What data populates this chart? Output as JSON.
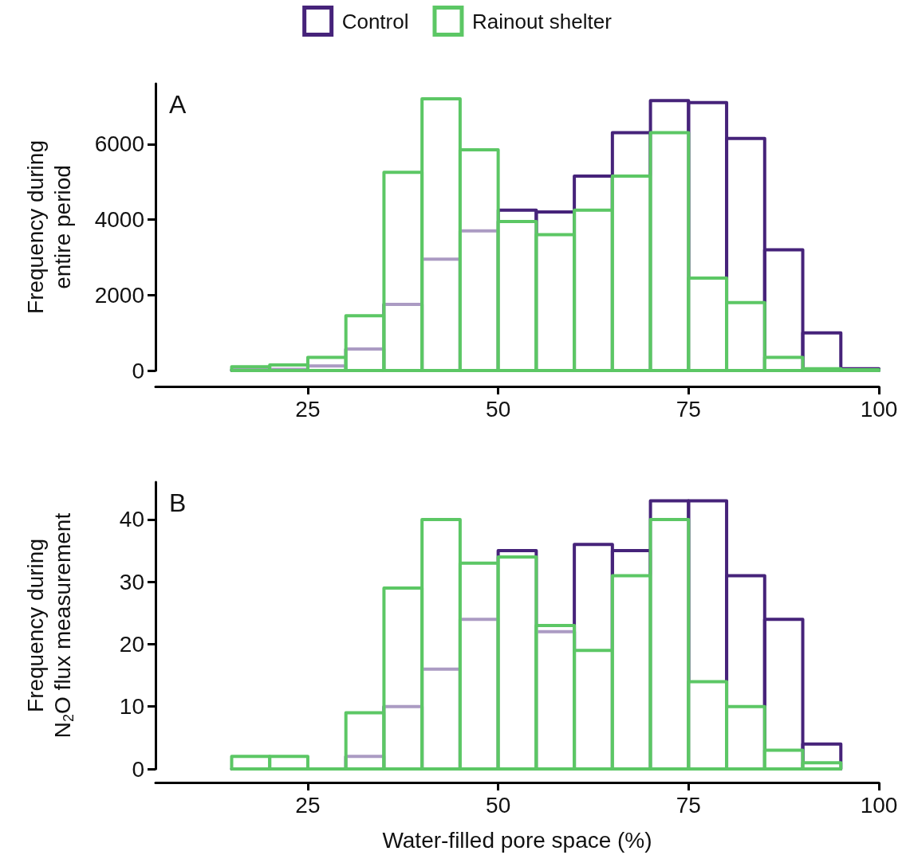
{
  "chart_data": [
    {
      "type": "histogram",
      "title": "A",
      "ylabel": "Frequency during\nentire period",
      "bins": [
        15,
        20,
        25,
        30,
        35,
        40,
        45,
        50,
        55,
        60,
        65,
        70,
        75,
        80,
        85,
        90,
        95,
        100
      ],
      "xlim": [
        5,
        100
      ],
      "xticks": [
        25,
        50,
        75,
        100
      ],
      "ylim": [
        0,
        7600
      ],
      "yticks": [
        0,
        2000,
        4000,
        6000
      ],
      "legend": "top",
      "grid": false,
      "series": [
        {
          "name": "Control",
          "color": "#46237a",
          "values": [
            20,
            30,
            120,
            570,
            1750,
            2950,
            3700,
            4250,
            4200,
            5150,
            6300,
            7150,
            7100,
            6150,
            3200,
            1000,
            50
          ]
        },
        {
          "name": "Rainout shelter",
          "color": "#5cc765",
          "values": [
            100,
            150,
            350,
            1450,
            5250,
            7200,
            5850,
            3950,
            3600,
            4250,
            5150,
            6300,
            2450,
            1800,
            350,
            50,
            20
          ]
        }
      ]
    },
    {
      "type": "histogram",
      "title": "B",
      "ylabel": "Frequency during\nN$_{2}$O flux measurement",
      "xlabel": "Water-filled pore space (%)",
      "bins": [
        15,
        20,
        25,
        30,
        35,
        40,
        45,
        50,
        55,
        60,
        65,
        70,
        75,
        80,
        85,
        90,
        95
      ],
      "xlim": [
        5,
        100
      ],
      "xticks": [
        25,
        50,
        75,
        100
      ],
      "ylim": [
        0,
        46
      ],
      "yticks": [
        0,
        10,
        20,
        30,
        40
      ],
      "legend": false,
      "grid": false,
      "series": [
        {
          "color": "#46237a",
          "values": [
            0,
            0,
            0,
            2,
            10,
            16,
            24,
            35,
            22,
            36,
            35,
            43,
            43,
            31,
            24,
            4
          ]
        },
        {
          "color": "#5cc765",
          "values": [
            2,
            2,
            0,
            9,
            29,
            40,
            33,
            34,
            23,
            19,
            31,
            40,
            14,
            10,
            3,
            1
          ]
        }
      ]
    }
  ]
}
